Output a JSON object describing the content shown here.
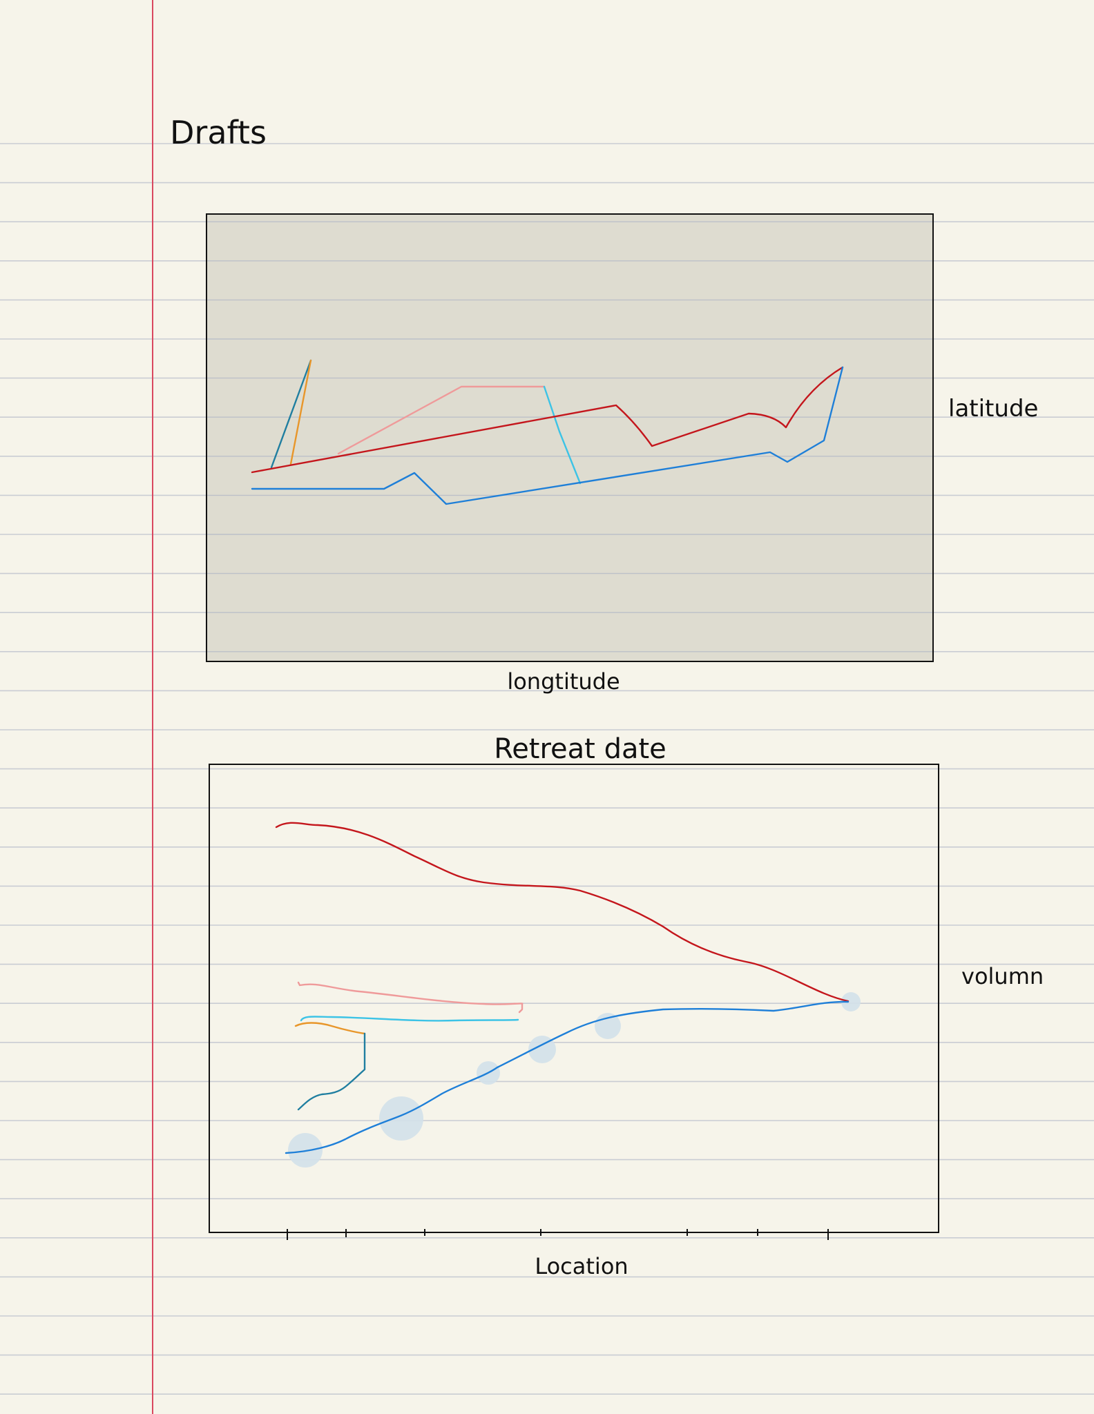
{
  "page": {
    "title": "Drafts",
    "colors": {
      "paper": "#f6f4ea",
      "rule_line": "#c9ccd3",
      "margin_line": "#d9475f",
      "map_fill": "#dedcd0"
    }
  },
  "map_sketch": {
    "x_label": "longtitude",
    "y_label": "latitude",
    "paths": [
      {
        "color": "#1f7ea0",
        "icon": "teal-stroke"
      },
      {
        "color": "#e8962a",
        "icon": "orange-stroke"
      },
      {
        "color": "#ef9a9a",
        "icon": "pink-stroke"
      },
      {
        "color": "#3cc3e6",
        "icon": "cyan-stroke"
      },
      {
        "color": "#c4161c",
        "icon": "red-stroke"
      },
      {
        "color": "#1e7fd8",
        "icon": "blue-stroke"
      }
    ]
  },
  "flow_sketch": {
    "title": "Retreat date",
    "x_label": "Location",
    "y_label": "volumn",
    "streams": [
      {
        "color": "#c4161c",
        "icon": "red-curve"
      },
      {
        "color": "#ef9a9a",
        "icon": "pink-curve"
      },
      {
        "color": "#3cc3e6",
        "icon": "cyan-curve"
      },
      {
        "color": "#e8962a",
        "icon": "orange-curve"
      },
      {
        "color": "#1f7ea0",
        "icon": "teal-curve"
      },
      {
        "color": "#1e7fd8",
        "icon": "blue-curve"
      }
    ],
    "bubble_color": "#d3e1ea"
  }
}
